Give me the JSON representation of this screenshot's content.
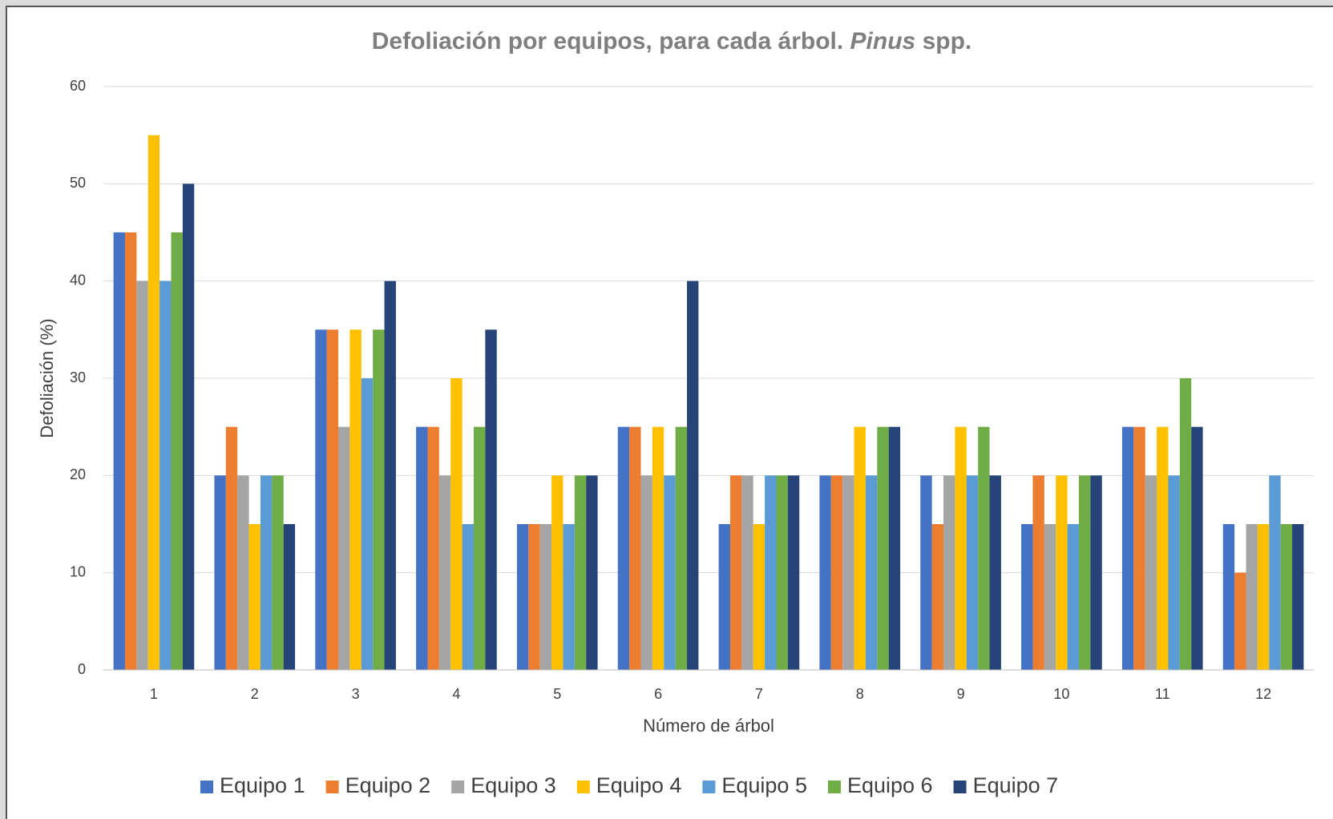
{
  "chart_data": {
    "type": "bar",
    "title": [
      "Defoliación por equipos, para cada árbol.",
      "Pinus",
      "spp."
    ],
    "x_label": "Número de árbol",
    "y_label": "Defoliación (%)",
    "categories": [
      "1",
      "2",
      "3",
      "4",
      "5",
      "6",
      "7",
      "8",
      "9",
      "10",
      "11",
      "12"
    ],
    "series": [
      {
        "name": "Equipo 1",
        "color": "#4472c4",
        "values": [
          45,
          20,
          35,
          25,
          15,
          25,
          15,
          20,
          20,
          15,
          25,
          15
        ]
      },
      {
        "name": "Equipo 2",
        "color": "#ed7d31",
        "values": [
          45,
          25,
          35,
          25,
          15,
          25,
          20,
          20,
          15,
          20,
          25,
          10
        ]
      },
      {
        "name": "Equipo 3",
        "color": "#a5a5a5",
        "values": [
          40,
          20,
          25,
          20,
          15,
          20,
          20,
          20,
          20,
          15,
          20,
          15
        ]
      },
      {
        "name": "Equipo 4",
        "color": "#ffc000",
        "values": [
          55,
          15,
          35,
          30,
          20,
          25,
          15,
          25,
          25,
          20,
          25,
          15
        ]
      },
      {
        "name": "Equipo 5",
        "color": "#5b9bd5",
        "values": [
          40,
          20,
          30,
          15,
          15,
          20,
          20,
          20,
          20,
          15,
          20,
          20
        ]
      },
      {
        "name": "Equipo 6",
        "color": "#70ad47",
        "values": [
          45,
          20,
          35,
          25,
          20,
          25,
          20,
          25,
          25,
          20,
          30,
          15
        ]
      },
      {
        "name": "Equipo 7",
        "color": "#264478",
        "values": [
          50,
          15,
          40,
          35,
          20,
          40,
          20,
          25,
          20,
          20,
          25,
          15
        ]
      }
    ],
    "ylim": [
      0,
      60
    ],
    "yticks": [
      0,
      10,
      20,
      30,
      40,
      50,
      60
    ],
    "grid": true,
    "legend": "bottom"
  }
}
